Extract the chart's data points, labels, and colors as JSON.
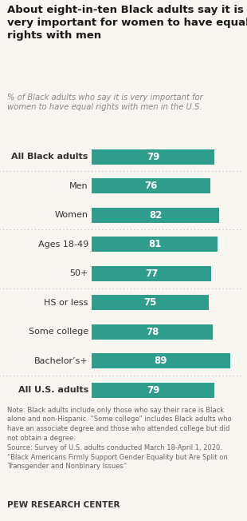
{
  "title": "About eight-in-ten Black adults say it is\nvery important for women to have equal\nrights with men",
  "subtitle": "% of Black adults who say it is very important for\nwomen to have equal rights with men in the U.S.",
  "categories": [
    "All Black adults",
    "Men",
    "Women",
    "Ages 18-49",
    "50+",
    "HS or less",
    "Some college",
    "Bachelor’s+",
    "All U.S. adults"
  ],
  "values": [
    79,
    76,
    82,
    81,
    77,
    75,
    78,
    89,
    79
  ],
  "bar_color": "#2e9d8c",
  "text_color": "#ffffff",
  "label_color": "#333333",
  "background_color": "#f9f5f0",
  "xlim": [
    0,
    95
  ],
  "bar_height": 0.52,
  "note": "Note: Black adults include only those who say their race is Black\nalone and non-Hispanic. “Some college” includes Black adults who\nhave an associate degree and those who attended college but did\nnot obtain a degree.\nSource: Survey of U.S. adults conducted March 18-April 1, 2020.\n“Black Americans Firmly Support Gender Equality but Are Split on\nTransgender and Nonbinary Issues”",
  "footer": "PEW RESEARCH CENTER",
  "bold_indices": [
    0,
    8
  ],
  "separator_after": [
    0,
    2,
    4,
    7
  ],
  "indent_indices": [
    1,
    2,
    3,
    4,
    5,
    6,
    7
  ]
}
